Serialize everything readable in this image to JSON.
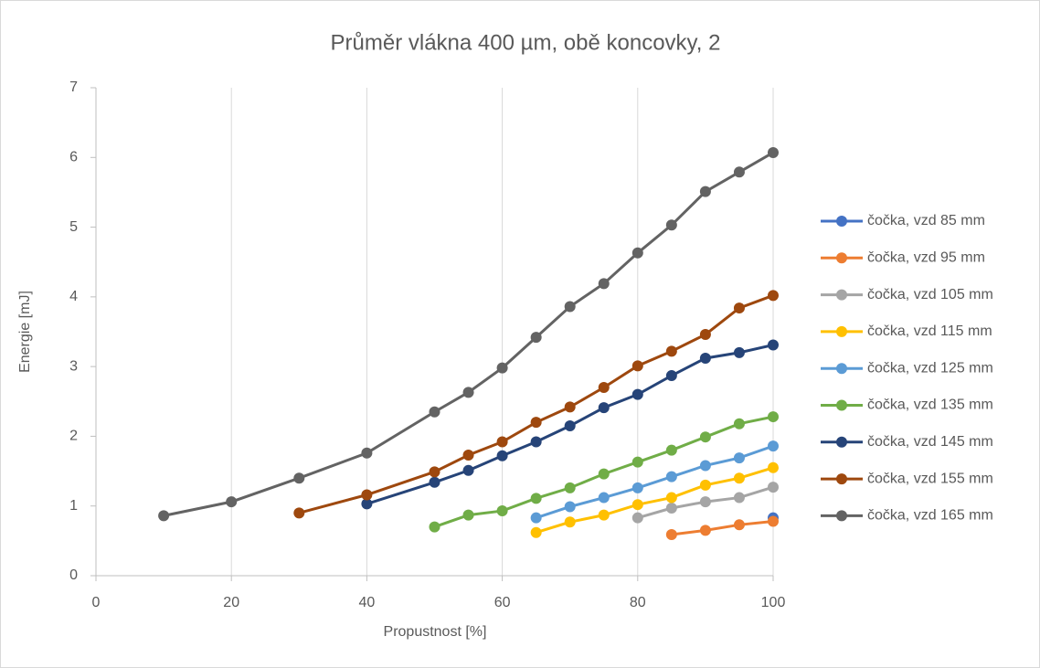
{
  "chart_data": {
    "type": "line",
    "title": "Průměr vlákna 400 µm, obě koncovky, 2",
    "x_label": "Propustnost [%]",
    "y_label": "Energie [mJ]",
    "xlim": [
      0,
      100
    ],
    "xticks": [
      0,
      20,
      40,
      60,
      80,
      100
    ],
    "ylim": [
      0,
      7
    ],
    "yticks": [
      0,
      1,
      2,
      3,
      4,
      5,
      6,
      7
    ],
    "grid": "x",
    "legend": "right",
    "series": [
      {
        "name": "čočka, vzd 85 mm",
        "color": "#4472c4",
        "x": [
          100
        ],
        "values": [
          0.83
        ]
      },
      {
        "name": "čočka, vzd 95 mm",
        "color": "#ed7d31",
        "x": [
          85,
          90,
          95,
          100
        ],
        "values": [
          0.59,
          0.65,
          0.73,
          0.78
        ]
      },
      {
        "name": "čočka, vzd 105 mm",
        "color": "#a5a5a5",
        "x": [
          80,
          85,
          90,
          95,
          100
        ],
        "values": [
          0.83,
          0.97,
          1.06,
          1.12,
          1.27
        ]
      },
      {
        "name": "čočka, vzd 115 mm",
        "color": "#ffc000",
        "x": [
          65,
          70,
          75,
          80,
          85,
          90,
          95,
          100
        ],
        "values": [
          0.62,
          0.77,
          0.87,
          1.02,
          1.12,
          1.3,
          1.4,
          1.55
        ]
      },
      {
        "name": "čočka, vzd 125 mm",
        "color": "#5b9bd5",
        "x": [
          65,
          70,
          75,
          80,
          85,
          90,
          95,
          100
        ],
        "values": [
          0.83,
          0.99,
          1.12,
          1.26,
          1.42,
          1.58,
          1.69,
          1.86
        ]
      },
      {
        "name": "čočka, vzd 135 mm",
        "color": "#70ad47",
        "x": [
          50,
          55,
          60,
          65,
          70,
          75,
          80,
          85,
          90,
          95,
          100
        ],
        "values": [
          0.7,
          0.87,
          0.93,
          1.11,
          1.26,
          1.46,
          1.63,
          1.8,
          1.99,
          2.18,
          2.28
        ]
      },
      {
        "name": "čočka, vzd 145 mm",
        "color": "#264478",
        "x": [
          40,
          50,
          55,
          60,
          65,
          70,
          75,
          80,
          85,
          90,
          95,
          100
        ],
        "values": [
          1.03,
          1.34,
          1.51,
          1.72,
          1.92,
          2.15,
          2.41,
          2.6,
          2.87,
          3.12,
          3.2,
          3.31
        ]
      },
      {
        "name": "čočka, vzd 155 mm",
        "color": "#9e480e",
        "x": [
          30,
          40,
          50,
          55,
          60,
          65,
          70,
          75,
          80,
          85,
          90,
          95,
          100
        ],
        "values": [
          0.9,
          1.16,
          1.49,
          1.73,
          1.92,
          2.2,
          2.42,
          2.7,
          3.01,
          3.22,
          3.46,
          3.84,
          4.02
        ]
      },
      {
        "name": "čočka, vzd 165 mm",
        "color": "#636363",
        "x": [
          10,
          20,
          30,
          40,
          50,
          55,
          60,
          65,
          70,
          75,
          80,
          85,
          90,
          95,
          100
        ],
        "values": [
          0.86,
          1.06,
          1.4,
          1.76,
          2.35,
          2.63,
          2.98,
          3.42,
          3.86,
          4.19,
          4.63,
          5.03,
          5.51,
          5.79,
          6.07
        ]
      }
    ]
  }
}
